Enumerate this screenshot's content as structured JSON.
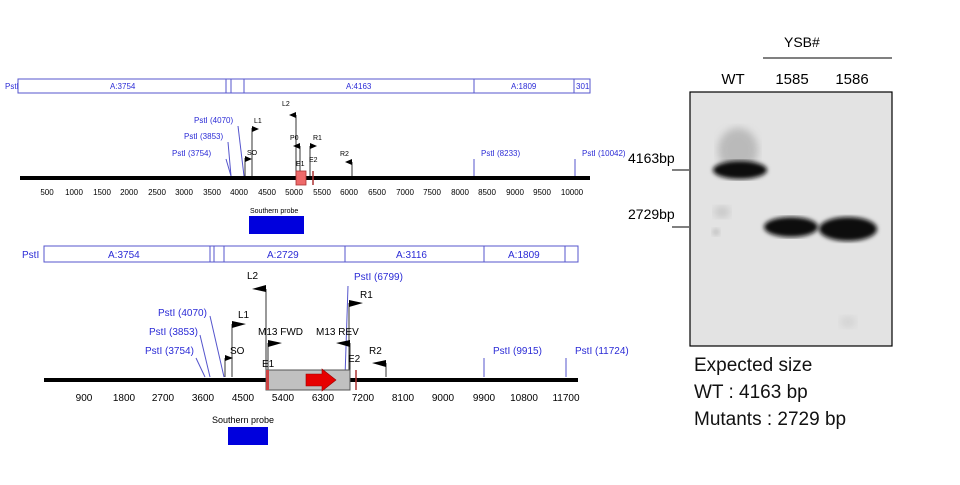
{
  "map_top": {
    "enzyme_label": "PstI",
    "fragments": [
      "A:3754",
      "A:4163",
      "A:1809",
      "301"
    ],
    "sites": [
      "PstI (3754)",
      "PstI (3853)",
      "PstI (4070)",
      "PstI (8233)",
      "PstI (10042)"
    ],
    "primers": [
      "SO",
      "L1",
      "L2",
      "P0",
      "R1",
      "R2"
    ],
    "exons": [
      "E1",
      "E2"
    ],
    "ticks": [
      "500",
      "1000",
      "1500",
      "2000",
      "2500",
      "3000",
      "3500",
      "4000",
      "4500",
      "5000",
      "5500",
      "6000",
      "6500",
      "7000",
      "7500",
      "8000",
      "8500",
      "9000",
      "9500",
      "10000"
    ],
    "probe_label": "Southern probe"
  },
  "map_bottom": {
    "enzyme_label": "PstI",
    "fragments": [
      "A:3754",
      "A:2729",
      "A:3116",
      "A:1809"
    ],
    "sites": [
      "PstI (3754)",
      "PstI (3853)",
      "PstI (4070)",
      "PstI (6799)",
      "PstI (9915)",
      "PstI (11724)"
    ],
    "primers": [
      "SO",
      "L1",
      "L2",
      "M13 FWD",
      "M13 REV",
      "R1",
      "R2"
    ],
    "exons": [
      "E1",
      "E2"
    ],
    "ticks": [
      "900",
      "1800",
      "2700",
      "3600",
      "4500",
      "5400",
      "6300",
      "7200",
      "8100",
      "9000",
      "9900",
      "10800",
      "11700"
    ],
    "probe_label": "Southern probe"
  },
  "blot": {
    "group_label": "YSB#",
    "lanes": [
      "WT",
      "1585",
      "1586"
    ],
    "markers": [
      "4163bp",
      "2729bp"
    ]
  },
  "caption": {
    "title": "Expected size",
    "line1": "WT : 4163 bp",
    "line2": "Mutants : 2729 bp"
  },
  "colors": {
    "label_blue": "#2b2bd6",
    "probe_blue": "#0000dd",
    "exon_red": "#ee6a6a",
    "cassette_arrow": "#e60000"
  }
}
